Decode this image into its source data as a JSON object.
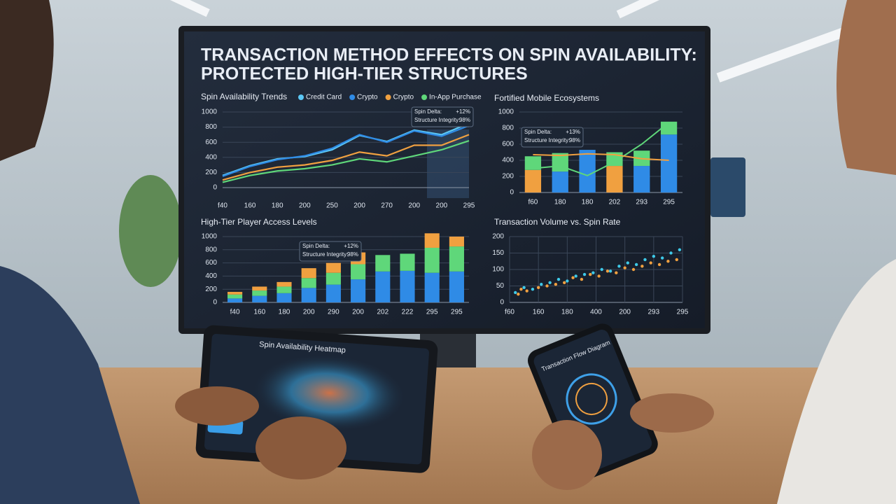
{
  "screen": {
    "title_line1": "TRANSACTION METHOD EFFECTS ON SPIN AVAILABILITY:",
    "title_line2": "PROTECTED HIGH-TIER STRUCTURES"
  },
  "chart_data": [
    {
      "type": "line",
      "title": "Spin Availability Trends",
      "categories": [
        "f40",
        "160",
        "180",
        "200",
        "250",
        "200",
        "270",
        "200",
        "200",
        "295"
      ],
      "series": [
        {
          "name": "Credit Card",
          "color": "#5cc8f5",
          "values": [
            160,
            290,
            380,
            410,
            500,
            690,
            610,
            760,
            700,
            850
          ]
        },
        {
          "name": "Crypto",
          "color": "#2f8be6",
          "values": [
            150,
            280,
            370,
            420,
            520,
            700,
            600,
            750,
            680,
            820
          ]
        },
        {
          "name": "Crypto",
          "color": "#f0a040",
          "values": [
            100,
            200,
            270,
            300,
            360,
            470,
            420,
            560,
            560,
            700
          ]
        },
        {
          "name": "In-App Purchase",
          "color": "#5fd77a",
          "values": [
            70,
            160,
            220,
            250,
            300,
            380,
            340,
            420,
            500,
            620
          ]
        }
      ],
      "ylim": [
        0,
        1000
      ],
      "yticks": [
        0,
        200,
        400,
        600,
        800,
        1000
      ],
      "grid": true,
      "annotation": {
        "line1": "Spin Delta:",
        "value1": "+12%",
        "line2": "Structure Integrity:",
        "value2": "98%"
      }
    },
    {
      "type": "bar",
      "stacked": true,
      "title": "Fortified Mobile Ecosystems",
      "categories": [
        "f60",
        "180",
        "180",
        "202",
        "293",
        "295"
      ],
      "series": [
        {
          "color": "#2f8be6",
          "values": [
            0,
            260,
            530,
            0,
            330,
            720
          ]
        },
        {
          "color": "#f0a040",
          "values": [
            280,
            0,
            0,
            330,
            0,
            0
          ]
        },
        {
          "color": "#5fd77a",
          "values": [
            170,
            230,
            0,
            170,
            190,
            160
          ]
        },
        {
          "type": "line",
          "color": "#5fd77a",
          "values": [
            300,
            330,
            210,
            380,
            600,
            870
          ]
        },
        {
          "type": "line",
          "color": "#f0a040",
          "values": [
            470,
            460,
            480,
            470,
            420,
            400
          ]
        }
      ],
      "ylim": [
        0,
        1000
      ],
      "yticks": [
        0,
        200,
        400,
        600,
        800,
        1000
      ],
      "grid": true,
      "annotation": {
        "line1": "Spin Delta:",
        "value1": "+13%",
        "line2": "Structure Integrity:",
        "value2": "98%"
      }
    },
    {
      "type": "bar",
      "stacked": true,
      "title": "High-Tier Player Access Levels",
      "categories": [
        "f40",
        "160",
        "180",
        "200",
        "290",
        "200",
        "202",
        "222",
        "295",
        "295"
      ],
      "series": [
        {
          "color": "#2f8be6",
          "values": [
            60,
            100,
            140,
            220,
            270,
            350,
            470,
            480,
            450,
            470
          ]
        },
        {
          "color": "#5fd77a",
          "values": [
            60,
            80,
            100,
            150,
            180,
            230,
            250,
            260,
            380,
            380
          ]
        },
        {
          "color": "#f0a040",
          "values": [
            40,
            60,
            70,
            150,
            150,
            180,
            0,
            0,
            220,
            150
          ]
        }
      ],
      "ylim": [
        0,
        1000
      ],
      "yticks": [
        0,
        200,
        400,
        600,
        800,
        1000
      ],
      "grid": true,
      "annotation": {
        "line1": "Spin Delta:",
        "value1": "+12%",
        "line2": "Structure Integrity:",
        "value2": "98%"
      }
    },
    {
      "type": "scatter",
      "title": "Transaction Volume vs. Spin Rate",
      "series": [
        {
          "color": "#3ec9e8",
          "x": [
            10,
            25,
            40,
            55,
            70,
            85,
            100,
            115,
            130,
            145,
            160,
            175,
            190,
            205,
            220,
            235,
            250,
            265,
            280,
            295
          ],
          "values": [
            30,
            45,
            40,
            55,
            60,
            70,
            65,
            80,
            85,
            90,
            100,
            95,
            110,
            120,
            115,
            130,
            140,
            135,
            150,
            160
          ]
        },
        {
          "color": "#f0a040",
          "x": [
            15,
            30,
            50,
            65,
            80,
            95,
            110,
            125,
            140,
            155,
            170,
            185,
            200,
            215,
            230,
            245,
            260,
            275,
            290,
            20
          ],
          "values": [
            25,
            35,
            45,
            50,
            55,
            60,
            75,
            70,
            85,
            80,
            95,
            90,
            105,
            100,
            110,
            120,
            115,
            125,
            130,
            40
          ]
        }
      ],
      "xlim": [
        0,
        300
      ],
      "xticks": [
        {
          "value": 0,
          "label": "f60"
        },
        {
          "value": 50,
          "label": "160"
        },
        {
          "value": 100,
          "label": "180"
        },
        {
          "value": 150,
          "label": "400"
        },
        {
          "value": 200,
          "label": "200"
        },
        {
          "value": 250,
          "label": "293"
        },
        {
          "value": 300,
          "label": "295"
        }
      ],
      "ylim": [
        0,
        200
      ],
      "yticks": [
        0,
        50,
        100,
        150,
        200
      ],
      "grid": true
    }
  ],
  "tablet": {
    "title": "Spin Availability Heatmap"
  },
  "phone": {
    "title": "Transaction Flow Diagram"
  }
}
